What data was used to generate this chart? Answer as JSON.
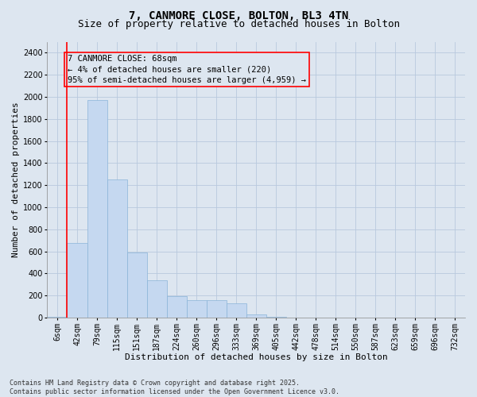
{
  "title_line1": "7, CANMORE CLOSE, BOLTON, BL3 4TN",
  "title_line2": "Size of property relative to detached houses in Bolton",
  "xlabel": "Distribution of detached houses by size in Bolton",
  "ylabel": "Number of detached properties",
  "categories": [
    "6sqm",
    "42sqm",
    "79sqm",
    "115sqm",
    "151sqm",
    "187sqm",
    "224sqm",
    "260sqm",
    "296sqm",
    "333sqm",
    "369sqm",
    "405sqm",
    "442sqm",
    "478sqm",
    "514sqm",
    "550sqm",
    "587sqm",
    "623sqm",
    "659sqm",
    "696sqm",
    "732sqm"
  ],
  "values": [
    10,
    680,
    1970,
    1250,
    590,
    340,
    195,
    160,
    155,
    130,
    30,
    5,
    3,
    2,
    1,
    1,
    0,
    0,
    0,
    0,
    0
  ],
  "bar_color": "#c5d8f0",
  "bar_edge_color": "#8ab4d8",
  "vline_color": "red",
  "annotation_text": "7 CANMORE CLOSE: 68sqm\n← 4% of detached houses are smaller (220)\n95% of semi-detached houses are larger (4,959) →",
  "annotation_box_color": "red",
  "ylim": [
    0,
    2500
  ],
  "yticks": [
    0,
    200,
    400,
    600,
    800,
    1000,
    1200,
    1400,
    1600,
    1800,
    2000,
    2200,
    2400
  ],
  "grid_color": "#b8c9de",
  "bg_color": "#dde6f0",
  "footer": "Contains HM Land Registry data © Crown copyright and database right 2025.\nContains public sector information licensed under the Open Government Licence v3.0.",
  "title_fontsize": 10,
  "subtitle_fontsize": 9,
  "axis_label_fontsize": 8,
  "tick_fontsize": 7,
  "annotation_fontsize": 7.5,
  "footer_fontsize": 6
}
